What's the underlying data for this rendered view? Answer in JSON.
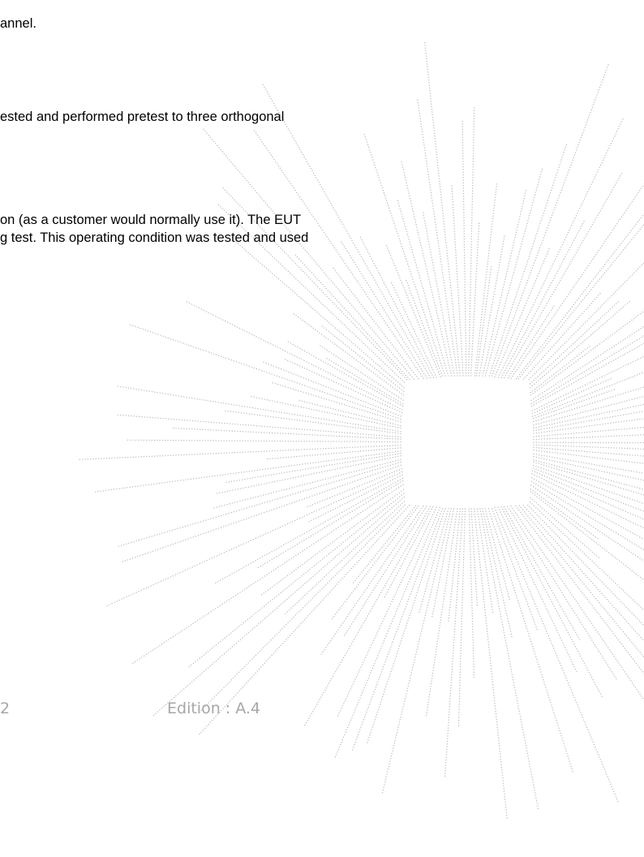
{
  "body_lines": [
    "annel.",
    "ested and performed pretest to three orthogonal",
    "on (as a customer would normally use it). The EUT",
    "g test. This operating condition was tested and used"
  ],
  "footer": {
    "page_number": "2",
    "edition": "Edition : A.4"
  },
  "watermark": {
    "icon": "dotted-sunburst-watermark",
    "color": "#b8b8b8"
  }
}
